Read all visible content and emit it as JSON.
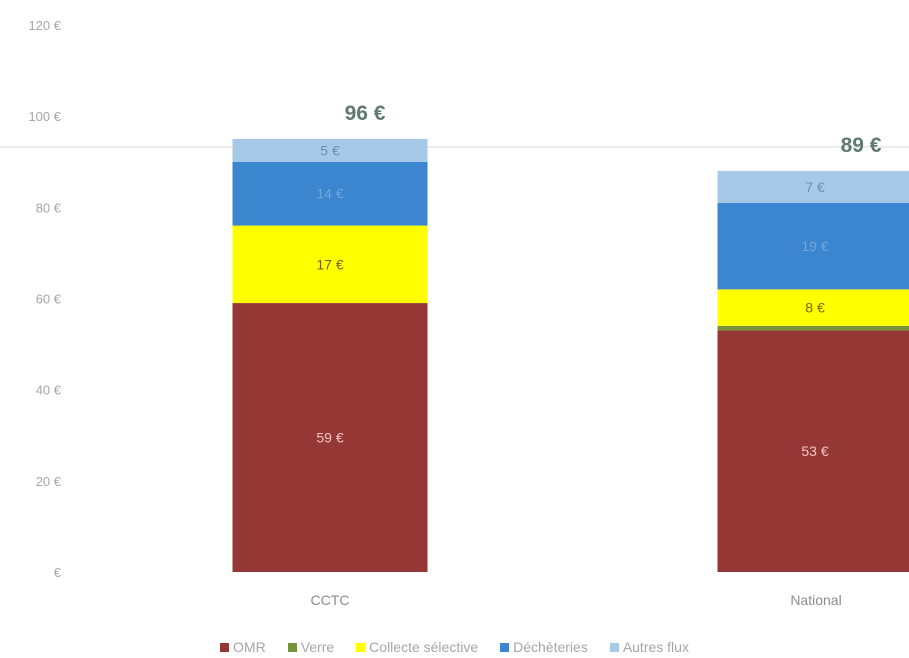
{
  "chart_data": {
    "type": "bar",
    "stacked": true,
    "categories": [
      "CCTC",
      "National"
    ],
    "ylim": [
      0,
      120
    ],
    "yticks": [
      0,
      20,
      40,
      60,
      80,
      100,
      120
    ],
    "ytick_labels": [
      "€",
      "20 €",
      "40 €",
      "60 €",
      "80 €",
      "100 €",
      "120 €"
    ],
    "grid": false,
    "legend_position": "bottom",
    "series": [
      {
        "name": "OMR",
        "values": [
          59,
          53
        ],
        "labels": [
          "59 €",
          "53 €"
        ],
        "color": "#953735",
        "label_color": "#f2c4c4"
      },
      {
        "name": "Verre",
        "values": [
          0,
          1
        ],
        "labels": [
          "",
          ""
        ],
        "color": "#77933c",
        "label_color": "#ffffff"
      },
      {
        "name": "Collecte sélective",
        "values": [
          17,
          8
        ],
        "labels": [
          "17 €",
          "8 €"
        ],
        "color": "#ffff00",
        "label_color": "#7f6000"
      },
      {
        "name": "Déchèteries",
        "values": [
          14,
          19
        ],
        "labels": [
          "14 €",
          "19 €"
        ],
        "color": "#3c85cf",
        "label_color": "#6fa6dc"
      },
      {
        "name": "Autres flux",
        "values": [
          5,
          7
        ],
        "labels": [
          "5 €",
          "7 €"
        ],
        "color": "#a6c9e8",
        "label_color": "#6b8fb3"
      }
    ],
    "totals": [
      96,
      89
    ],
    "total_labels": [
      "96 €",
      "89 €"
    ]
  }
}
